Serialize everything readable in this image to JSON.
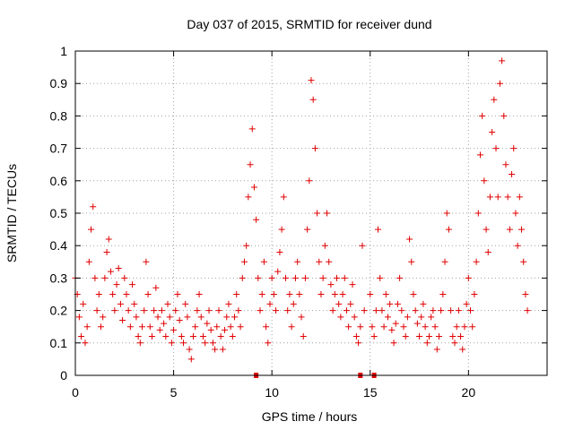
{
  "chart_data": {
    "type": "scatter",
    "title": "Day 037 of 2015, SRMTID for receiver dund",
    "xlabel": "GPS time / hours",
    "ylabel": "SRMTID / TECUs",
    "xlim": [
      0,
      24
    ],
    "ylim": [
      0,
      1
    ],
    "xticks": [
      "0",
      "5",
      "10",
      "15",
      "20"
    ],
    "yticks": [
      "0",
      "0.1",
      "0.2",
      "0.3",
      "0.4",
      "0.5",
      "0.6",
      "0.7",
      "0.8",
      "0.9",
      "1"
    ],
    "grid": true,
    "marker": "plus",
    "color": "#e00000",
    "gap_markers_x": [
      9.2,
      14.5,
      15.2
    ],
    "series": [
      {
        "points": [
          [
            0.0,
            0.3
          ],
          [
            0.1,
            0.25
          ],
          [
            0.2,
            0.18
          ],
          [
            0.3,
            0.12
          ],
          [
            0.4,
            0.22
          ],
          [
            0.5,
            0.1
          ],
          [
            0.6,
            0.15
          ],
          [
            0.7,
            0.35
          ],
          [
            0.8,
            0.45
          ],
          [
            0.9,
            0.52
          ],
          [
            1.0,
            0.3
          ],
          [
            1.1,
            0.2
          ],
          [
            1.2,
            0.25
          ],
          [
            1.3,
            0.15
          ],
          [
            1.4,
            0.18
          ],
          [
            1.5,
            0.3
          ],
          [
            1.6,
            0.38
          ],
          [
            1.7,
            0.42
          ],
          [
            1.8,
            0.32
          ],
          [
            1.9,
            0.25
          ],
          [
            2.0,
            0.2
          ],
          [
            2.1,
            0.28
          ],
          [
            2.2,
            0.33
          ],
          [
            2.3,
            0.22
          ],
          [
            2.4,
            0.17
          ],
          [
            2.5,
            0.3
          ],
          [
            2.6,
            0.25
          ],
          [
            2.7,
            0.2
          ],
          [
            2.8,
            0.15
          ],
          [
            2.9,
            0.28
          ],
          [
            3.0,
            0.22
          ],
          [
            3.1,
            0.18
          ],
          [
            3.2,
            0.12
          ],
          [
            3.3,
            0.1
          ],
          [
            3.4,
            0.15
          ],
          [
            3.5,
            0.2
          ],
          [
            3.6,
            0.35
          ],
          [
            3.7,
            0.25
          ],
          [
            3.8,
            0.15
          ],
          [
            3.9,
            0.12
          ],
          [
            4.0,
            0.2
          ],
          [
            4.1,
            0.27
          ],
          [
            4.2,
            0.18
          ],
          [
            4.3,
            0.14
          ],
          [
            4.4,
            0.2
          ],
          [
            4.5,
            0.16
          ],
          [
            4.6,
            0.12
          ],
          [
            4.7,
            0.22
          ],
          [
            4.8,
            0.18
          ],
          [
            4.9,
            0.1
          ],
          [
            5.0,
            0.14
          ],
          [
            5.1,
            0.2
          ],
          [
            5.2,
            0.25
          ],
          [
            5.3,
            0.17
          ],
          [
            5.4,
            0.12
          ],
          [
            5.5,
            0.1
          ],
          [
            5.6,
            0.22
          ],
          [
            5.7,
            0.18
          ],
          [
            5.8,
            0.08
          ],
          [
            5.9,
            0.05
          ],
          [
            6.0,
            0.12
          ],
          [
            6.1,
            0.15
          ],
          [
            6.2,
            0.2
          ],
          [
            6.3,
            0.25
          ],
          [
            6.4,
            0.18
          ],
          [
            6.5,
            0.12
          ],
          [
            6.6,
            0.1
          ],
          [
            6.7,
            0.16
          ],
          [
            6.8,
            0.2
          ],
          [
            6.9,
            0.14
          ],
          [
            7.0,
            0.1
          ],
          [
            7.1,
            0.08
          ],
          [
            7.2,
            0.15
          ],
          [
            7.3,
            0.2
          ],
          [
            7.4,
            0.12
          ],
          [
            7.5,
            0.08
          ],
          [
            7.6,
            0.14
          ],
          [
            7.7,
            0.18
          ],
          [
            7.8,
            0.22
          ],
          [
            7.9,
            0.15
          ],
          [
            8.0,
            0.12
          ],
          [
            8.1,
            0.18
          ],
          [
            8.2,
            0.25
          ],
          [
            8.3,
            0.2
          ],
          [
            8.4,
            0.15
          ],
          [
            8.5,
            0.3
          ],
          [
            8.6,
            0.35
          ],
          [
            8.7,
            0.4
          ],
          [
            8.8,
            0.55
          ],
          [
            8.9,
            0.65
          ],
          [
            9.0,
            0.76
          ],
          [
            9.1,
            0.58
          ],
          [
            9.2,
            0.48
          ],
          [
            9.3,
            0.3
          ],
          [
            9.4,
            0.2
          ],
          [
            9.5,
            0.25
          ],
          [
            9.6,
            0.35
          ],
          [
            9.7,
            0.15
          ],
          [
            9.8,
            0.1
          ],
          [
            9.9,
            0.22
          ],
          [
            10.0,
            0.3
          ],
          [
            10.1,
            0.25
          ],
          [
            10.2,
            0.2
          ],
          [
            10.3,
            0.32
          ],
          [
            10.4,
            0.38
          ],
          [
            10.5,
            0.45
          ],
          [
            10.6,
            0.55
          ],
          [
            10.7,
            0.3
          ],
          [
            10.8,
            0.2
          ],
          [
            10.9,
            0.25
          ],
          [
            11.0,
            0.15
          ],
          [
            11.1,
            0.22
          ],
          [
            11.2,
            0.3
          ],
          [
            11.3,
            0.35
          ],
          [
            11.4,
            0.25
          ],
          [
            11.5,
            0.18
          ],
          [
            11.6,
            0.12
          ],
          [
            11.7,
            0.3
          ],
          [
            11.8,
            0.45
          ],
          [
            11.9,
            0.6
          ],
          [
            12.0,
            0.91
          ],
          [
            12.1,
            0.85
          ],
          [
            12.2,
            0.7
          ],
          [
            12.3,
            0.5
          ],
          [
            12.4,
            0.35
          ],
          [
            12.5,
            0.25
          ],
          [
            12.6,
            0.3
          ],
          [
            12.7,
            0.4
          ],
          [
            12.8,
            0.5
          ],
          [
            12.9,
            0.35
          ],
          [
            13.0,
            0.28
          ],
          [
            13.1,
            0.2
          ],
          [
            13.2,
            0.25
          ],
          [
            13.3,
            0.3
          ],
          [
            13.4,
            0.22
          ],
          [
            13.5,
            0.18
          ],
          [
            13.6,
            0.25
          ],
          [
            13.7,
            0.3
          ],
          [
            13.8,
            0.2
          ],
          [
            13.9,
            0.15
          ],
          [
            14.0,
            0.22
          ],
          [
            14.1,
            0.28
          ],
          [
            14.2,
            0.18
          ],
          [
            14.3,
            0.12
          ],
          [
            14.4,
            0.1
          ],
          [
            14.5,
            0.15
          ],
          [
            14.6,
            0.4
          ],
          [
            14.7,
            0.2
          ],
          [
            15.0,
            0.25
          ],
          [
            15.1,
            0.15
          ],
          [
            15.2,
            0.12
          ],
          [
            15.3,
            0.2
          ],
          [
            15.4,
            0.45
          ],
          [
            15.5,
            0.3
          ],
          [
            15.6,
            0.2
          ],
          [
            15.7,
            0.15
          ],
          [
            15.8,
            0.25
          ],
          [
            15.9,
            0.18
          ],
          [
            16.0,
            0.22
          ],
          [
            16.1,
            0.14
          ],
          [
            16.2,
            0.1
          ],
          [
            16.3,
            0.16
          ],
          [
            16.4,
            0.22
          ],
          [
            16.5,
            0.3
          ],
          [
            16.6,
            0.2
          ],
          [
            16.7,
            0.15
          ],
          [
            16.8,
            0.12
          ],
          [
            16.9,
            0.18
          ],
          [
            17.0,
            0.42
          ],
          [
            17.1,
            0.35
          ],
          [
            17.2,
            0.25
          ],
          [
            17.3,
            0.2
          ],
          [
            17.4,
            0.16
          ],
          [
            17.5,
            0.12
          ],
          [
            17.6,
            0.18
          ],
          [
            17.7,
            0.22
          ],
          [
            17.8,
            0.15
          ],
          [
            17.9,
            0.1
          ],
          [
            18.0,
            0.12
          ],
          [
            18.1,
            0.18
          ],
          [
            18.2,
            0.2
          ],
          [
            18.3,
            0.15
          ],
          [
            18.4,
            0.08
          ],
          [
            18.5,
            0.12
          ],
          [
            18.6,
            0.2
          ],
          [
            18.7,
            0.25
          ],
          [
            18.8,
            0.35
          ],
          [
            18.9,
            0.5
          ],
          [
            19.0,
            0.45
          ],
          [
            19.1,
            0.2
          ],
          [
            19.2,
            0.12
          ],
          [
            19.3,
            0.1
          ],
          [
            19.4,
            0.15
          ],
          [
            19.5,
            0.2
          ],
          [
            19.6,
            0.12
          ],
          [
            19.7,
            0.08
          ],
          [
            19.8,
            0.15
          ],
          [
            19.9,
            0.22
          ],
          [
            20.0,
            0.3
          ],
          [
            20.1,
            0.2
          ],
          [
            20.2,
            0.15
          ],
          [
            20.3,
            0.25
          ],
          [
            20.4,
            0.35
          ],
          [
            20.5,
            0.5
          ],
          [
            20.6,
            0.68
          ],
          [
            20.7,
            0.8
          ],
          [
            20.8,
            0.6
          ],
          [
            20.9,
            0.45
          ],
          [
            21.0,
            0.38
          ],
          [
            21.1,
            0.55
          ],
          [
            21.2,
            0.75
          ],
          [
            21.3,
            0.85
          ],
          [
            21.4,
            0.7
          ],
          [
            21.5,
            0.55
          ],
          [
            21.6,
            0.9
          ],
          [
            21.7,
            0.97
          ],
          [
            21.8,
            0.8
          ],
          [
            21.9,
            0.65
          ],
          [
            22.0,
            0.55
          ],
          [
            22.1,
            0.45
          ],
          [
            22.2,
            0.62
          ],
          [
            22.3,
            0.7
          ],
          [
            22.4,
            0.5
          ],
          [
            22.5,
            0.4
          ],
          [
            22.6,
            0.55
          ],
          [
            22.7,
            0.45
          ],
          [
            22.8,
            0.35
          ],
          [
            22.9,
            0.25
          ],
          [
            23.0,
            0.2
          ]
        ]
      }
    ]
  }
}
